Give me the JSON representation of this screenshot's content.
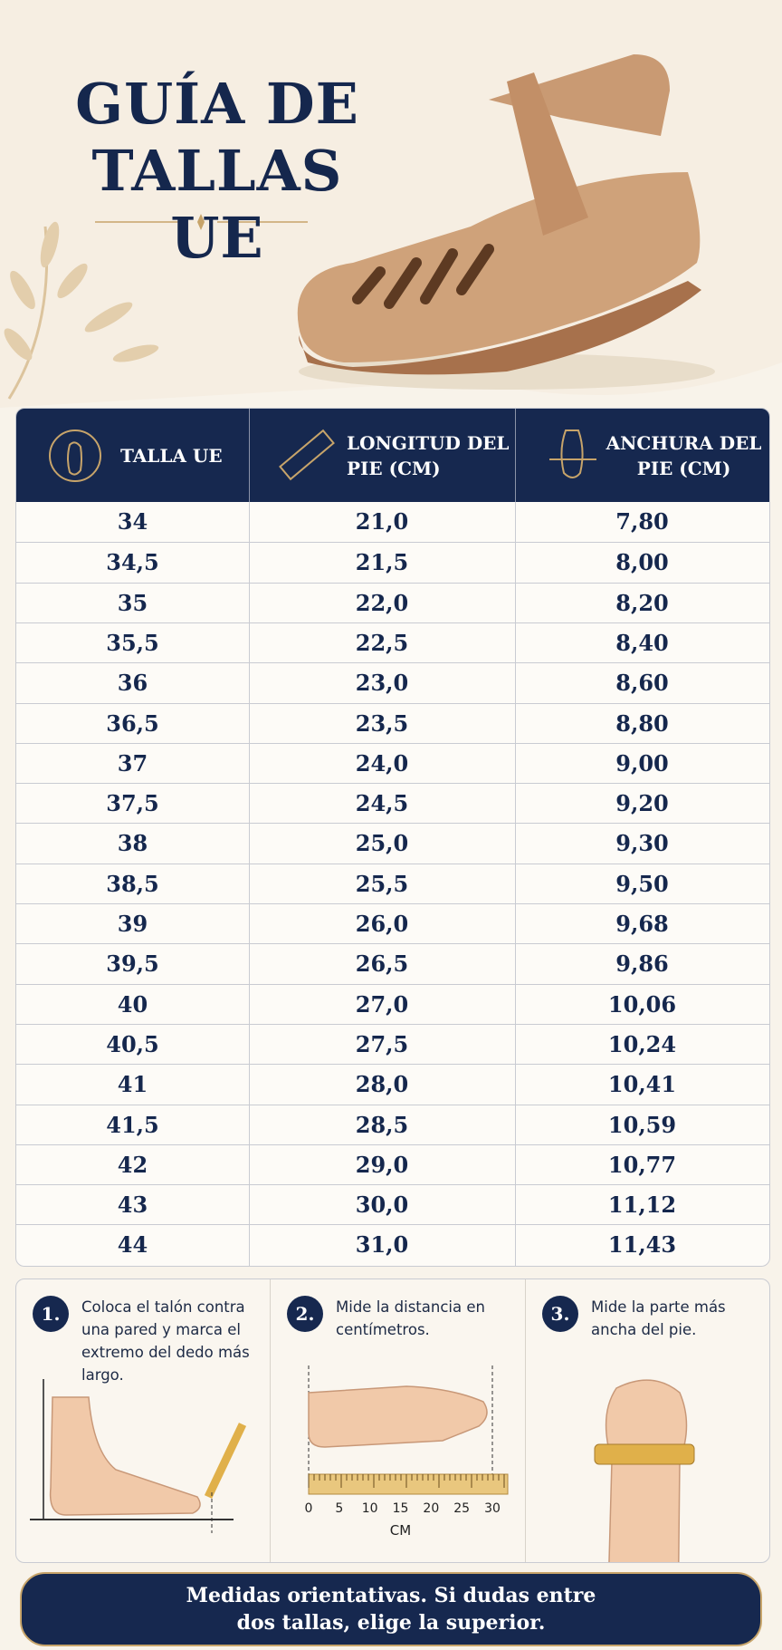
{
  "header": {
    "title_lines": [
      "GUÍA DE",
      "TALLAS UE"
    ]
  },
  "table": {
    "columns": [
      "TALLA UE",
      "LONGITUD DEL PIE (CM)",
      "ANCHURA DEL PIE (CM)"
    ],
    "rows": [
      [
        "34",
        "21,0",
        "7,80"
      ],
      [
        "34,5",
        "21,5",
        "8,00"
      ],
      [
        "35",
        "22,0",
        "8,20"
      ],
      [
        "35,5",
        "22,5",
        "8,40"
      ],
      [
        "36",
        "23,0",
        "8,60"
      ],
      [
        "36,5",
        "23,5",
        "8,80"
      ],
      [
        "37",
        "24,0",
        "9,00"
      ],
      [
        "37,5",
        "24,5",
        "9,20"
      ],
      [
        "38",
        "25,0",
        "9,30"
      ],
      [
        "38,5",
        "25,5",
        "9,50"
      ],
      [
        "39",
        "26,0",
        "9,68"
      ],
      [
        "39,5",
        "26,5",
        "9,86"
      ],
      [
        "40",
        "27,0",
        "10,06"
      ],
      [
        "40,5",
        "27,5",
        "10,24"
      ],
      [
        "41",
        "28,0",
        "10,41"
      ],
      [
        "41,5",
        "28,5",
        "10,59"
      ],
      [
        "42",
        "29,0",
        "10,77"
      ],
      [
        "43",
        "30,0",
        "11,12"
      ],
      [
        "44",
        "31,0",
        "11,43"
      ]
    ]
  },
  "steps": [
    {
      "number": "1.",
      "text": "Coloca el talón contra una pared y marca el extremo del dedo más largo."
    },
    {
      "number": "2.",
      "text": "Mide la distancia en centímetros."
    },
    {
      "number": "3.",
      "text": "Mide la parte más ancha del pie."
    }
  ],
  "ruler": {
    "labels": [
      "0",
      "5",
      "10",
      "15",
      "20",
      "25",
      "30"
    ],
    "unit": "CM"
  },
  "footer": {
    "text": "Medidas orientativas. Si dudas entre dos tallas, elige la superior."
  }
}
